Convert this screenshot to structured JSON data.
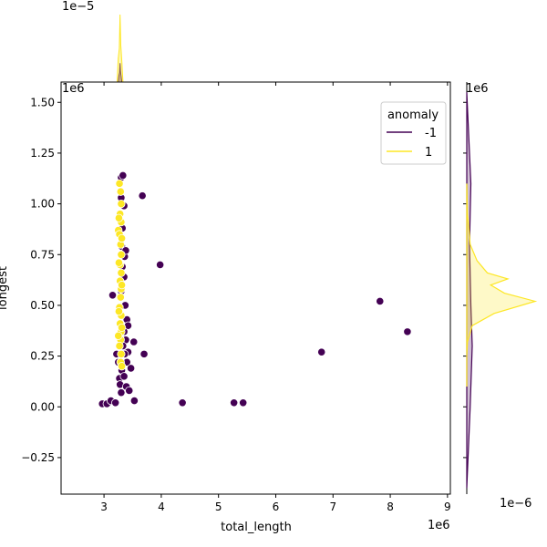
{
  "chart_data": {
    "type": "scatter",
    "xlabel": "total_length",
    "ylabel": "longest",
    "x_offset_label": "1e6",
    "y_offset_label": "1e6",
    "x_ticks": [
      "3",
      "4",
      "5",
      "6",
      "7",
      "8",
      "9"
    ],
    "y_ticks": [
      "−0.25",
      "0.00",
      "0.25",
      "0.50",
      "0.75",
      "1.00",
      "1.25",
      "1.50"
    ],
    "xlim": [
      2.25,
      9.05
    ],
    "ylim": [
      -0.43,
      1.6
    ],
    "top_marginal_offset_label": "1e−5",
    "right_marginal_offset_label": "1e−6",
    "legend": {
      "title": "anomaly",
      "placement": "top-right",
      "entries": [
        {
          "label": "-1",
          "color": "#440154"
        },
        {
          "label": "1",
          "color": "#fde725"
        }
      ]
    },
    "colors": {
      "anomaly_neg": "#440154",
      "anomaly_pos": "#fde725"
    },
    "series": [
      {
        "name": "-1",
        "color": "#440154",
        "points": [
          [
            2.97,
            0.015
          ],
          [
            3.05,
            0.015
          ],
          [
            3.12,
            0.03
          ],
          [
            3.15,
            0.55
          ],
          [
            3.2,
            0.02
          ],
          [
            3.22,
            0.26
          ],
          [
            3.25,
            0.22
          ],
          [
            3.27,
            0.14
          ],
          [
            3.28,
            0.11
          ],
          [
            3.3,
            0.07
          ],
          [
            3.3,
            1.13
          ],
          [
            3.33,
            1.14
          ],
          [
            3.3,
            1.03
          ],
          [
            3.35,
            0.99
          ],
          [
            3.32,
            0.88
          ],
          [
            3.31,
            0.79
          ],
          [
            3.36,
            0.74
          ],
          [
            3.38,
            0.77
          ],
          [
            3.32,
            0.69
          ],
          [
            3.35,
            0.64
          ],
          [
            3.3,
            0.57
          ],
          [
            3.37,
            0.5
          ],
          [
            3.4,
            0.43
          ],
          [
            3.42,
            0.4
          ],
          [
            3.35,
            0.37
          ],
          [
            3.38,
            0.33
          ],
          [
            3.33,
            0.3
          ],
          [
            3.42,
            0.27
          ],
          [
            3.36,
            0.26
          ],
          [
            3.4,
            0.22
          ],
          [
            3.31,
            0.18
          ],
          [
            3.35,
            0.15
          ],
          [
            3.39,
            0.1
          ],
          [
            3.44,
            0.08
          ],
          [
            3.47,
            0.19
          ],
          [
            3.52,
            0.32
          ],
          [
            3.53,
            0.03
          ],
          [
            3.7,
            0.26
          ],
          [
            3.67,
            1.04
          ],
          [
            3.98,
            0.7
          ],
          [
            4.37,
            0.02
          ],
          [
            5.27,
            0.02
          ],
          [
            5.43,
            0.02
          ],
          [
            6.8,
            0.27
          ],
          [
            7.82,
            0.52
          ],
          [
            8.3,
            0.37
          ]
        ]
      },
      {
        "name": "1",
        "color": "#fde725",
        "points": [
          [
            3.25,
            0.87
          ],
          [
            3.27,
            1.1
          ],
          [
            3.29,
            1.06
          ],
          [
            3.3,
            1.0
          ],
          [
            3.28,
            0.95
          ],
          [
            3.3,
            0.91
          ],
          [
            3.27,
            0.85
          ],
          [
            3.29,
            0.8
          ],
          [
            3.3,
            0.75
          ],
          [
            3.28,
            0.7
          ],
          [
            3.3,
            0.66
          ],
          [
            3.28,
            0.62
          ],
          [
            3.3,
            0.58
          ],
          [
            3.29,
            0.54
          ],
          [
            3.27,
            0.49
          ],
          [
            3.3,
            0.45
          ],
          [
            3.28,
            0.41
          ],
          [
            3.3,
            0.37
          ],
          [
            3.29,
            0.33
          ],
          [
            3.27,
            0.3
          ],
          [
            3.3,
            0.26
          ],
          [
            3.29,
            0.22
          ],
          [
            3.31,
            0.2
          ],
          [
            3.26,
            0.93
          ],
          [
            3.31,
            0.83
          ],
          [
            3.26,
            0.71
          ],
          [
            3.31,
            0.6
          ],
          [
            3.26,
            0.47
          ],
          [
            3.31,
            0.39
          ],
          [
            3.25,
            0.35
          ]
        ]
      }
    ],
    "top_marginal": {
      "type": "kde",
      "series": [
        {
          "name": "-1",
          "peak_x": 3.28,
          "relative_height": 0.28
        },
        {
          "name": "1",
          "peak_x": 3.28,
          "relative_height": 1.0
        }
      ]
    },
    "right_marginal": {
      "type": "kde",
      "series": [
        {
          "name": "-1",
          "profile": [
            [
              -0.4,
              0.0
            ],
            [
              0.0,
              0.05
            ],
            [
              0.3,
              0.08
            ],
            [
              0.5,
              0.06
            ],
            [
              0.8,
              0.04
            ],
            [
              1.1,
              0.06
            ],
            [
              1.55,
              0.0
            ]
          ]
        },
        {
          "name": "1",
          "profile": [
            [
              0.1,
              0.0
            ],
            [
              0.25,
              0.0
            ],
            [
              0.32,
              0.01
            ],
            [
              0.4,
              0.08
            ],
            [
              0.46,
              0.4
            ],
            [
              0.52,
              1.0
            ],
            [
              0.56,
              0.55
            ],
            [
              0.6,
              0.35
            ],
            [
              0.63,
              0.6
            ],
            [
              0.66,
              0.3
            ],
            [
              0.72,
              0.15
            ],
            [
              0.8,
              0.05
            ],
            [
              0.88,
              0.03
            ],
            [
              0.95,
              0.01
            ],
            [
              1.1,
              0.0
            ]
          ]
        }
      ]
    },
    "grid": false
  }
}
